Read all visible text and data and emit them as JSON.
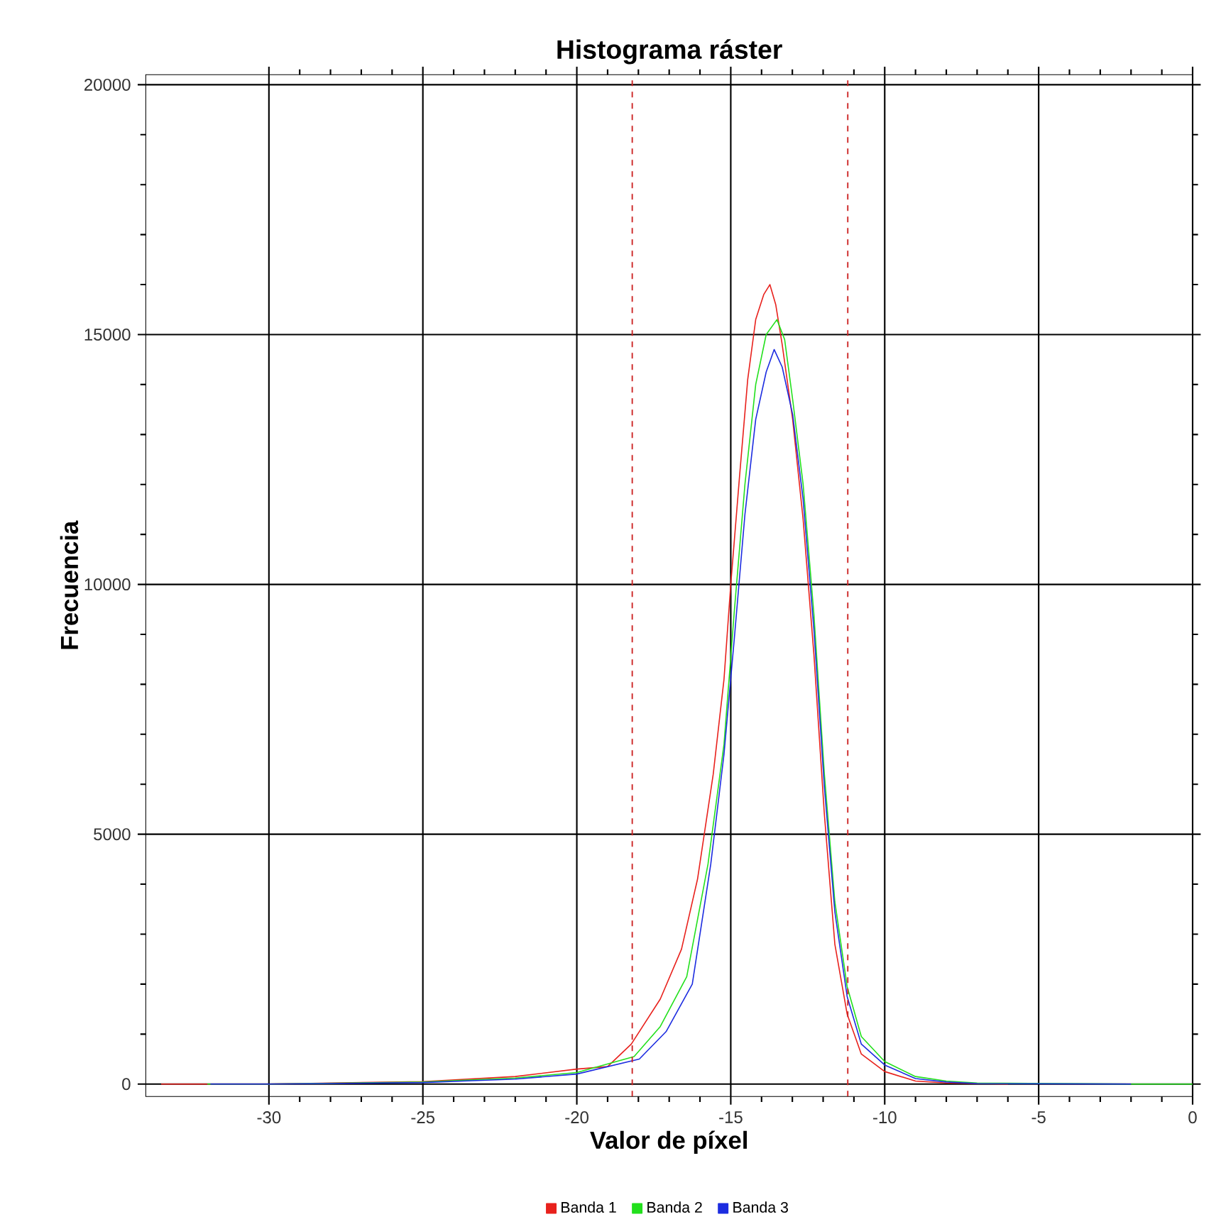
{
  "chart_data": {
    "type": "line",
    "title": "Histograma ráster",
    "xlabel": "Valor de píxel",
    "ylabel": "Frecuencia",
    "xlim": [
      -34,
      0
    ],
    "ylim": [
      -250,
      20200
    ],
    "xticks": [
      -30,
      -25,
      -20,
      -15,
      -10,
      -5,
      0
    ],
    "yticks": [
      0,
      5000,
      10000,
      15000,
      20000
    ],
    "grid": true,
    "legend": "bottom",
    "line_style": "solid",
    "ref_lines": [
      {
        "axis": "x",
        "value": -18.2,
        "color": "#cc2222",
        "line_style": "dashed"
      },
      {
        "axis": "x",
        "value": -11.2,
        "color": "#cc2222",
        "line_style": "dashed"
      }
    ],
    "series": [
      {
        "name": "Banda 1",
        "color": "#e8211c",
        "x": [
          -33.5,
          -30,
          -25,
          -22,
          -20,
          -19.0,
          -18.23,
          -17.29,
          -16.6,
          -16.08,
          -15.57,
          -15.22,
          -15.0,
          -14.71,
          -14.45,
          -14.19,
          -13.93,
          -13.73,
          -13.54,
          -13.33,
          -12.99,
          -12.65,
          -12.3,
          -11.96,
          -11.62,
          -11.22,
          -10.76,
          -10.0,
          -9.0,
          -8.0,
          -6.0
        ],
        "values": [
          0,
          0,
          50,
          150,
          300,
          350,
          800,
          1700,
          2700,
          4100,
          6200,
          8100,
          10000,
          12200,
          14100,
          15300,
          15800,
          16000,
          15600,
          14800,
          13300,
          11300,
          8600,
          5400,
          2800,
          1400,
          600,
          250,
          60,
          20,
          0
        ]
      },
      {
        "name": "Banda 2",
        "color": "#22e01c",
        "x": [
          -32,
          -30,
          -25,
          -22,
          -20,
          -18.14,
          -17.29,
          -16.43,
          -15.74,
          -15.22,
          -14.88,
          -14.54,
          -14.19,
          -13.85,
          -13.5,
          -13.25,
          -12.99,
          -12.65,
          -12.3,
          -11.96,
          -11.62,
          -11.22,
          -10.76,
          -10.0,
          -9.0,
          -8.0,
          -7.0,
          -2.0,
          0
        ],
        "values": [
          0,
          0,
          40,
          120,
          230,
          550,
          1150,
          2150,
          4400,
          6800,
          9500,
          12000,
          14000,
          15000,
          15300,
          14900,
          13700,
          12000,
          9400,
          6200,
          3650,
          1950,
          950,
          450,
          150,
          60,
          20,
          0,
          0
        ]
      },
      {
        "name": "Banda 3",
        "color": "#1c2ce0",
        "x": [
          -31.9,
          -30,
          -25,
          -22,
          -20,
          -17.97,
          -17.1,
          -16.25,
          -15.65,
          -15.22,
          -14.88,
          -14.54,
          -14.19,
          -13.85,
          -13.59,
          -13.33,
          -12.99,
          -12.65,
          -12.3,
          -11.96,
          -11.62,
          -11.22,
          -10.76,
          -10.0,
          -9.0,
          -8.0,
          -7.0,
          -2.0
        ],
        "values": [
          0,
          0,
          30,
          100,
          200,
          500,
          1050,
          2000,
          4400,
          6600,
          8950,
          11400,
          13300,
          14250,
          14700,
          14350,
          13400,
          11700,
          9100,
          5950,
          3450,
          1750,
          800,
          380,
          110,
          40,
          10,
          0
        ]
      }
    ]
  }
}
